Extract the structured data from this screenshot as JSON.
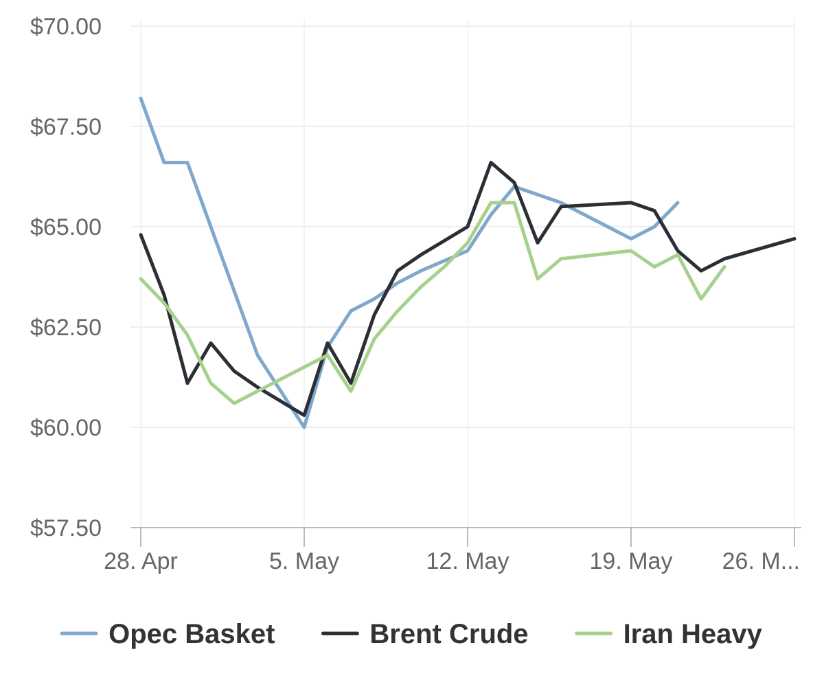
{
  "chart_data": {
    "type": "line",
    "title": "",
    "xlabel": "",
    "ylabel": "",
    "x_range": [
      "2019-04-28",
      "2019-05-26"
    ],
    "ylim": [
      57.5,
      70.0
    ],
    "y_ticks": [
      70.0,
      67.5,
      65.0,
      62.5,
      60.0,
      57.5
    ],
    "y_tick_labels": [
      "$70.00",
      "$67.50",
      "$65.00",
      "$62.50",
      "$60.00",
      "$57.50"
    ],
    "x_ticks": [
      "2019-04-28",
      "2019-05-05",
      "2019-05-12",
      "2019-05-19",
      "2019-05-26"
    ],
    "x_tick_labels": [
      "28. Apr",
      "5. May",
      "12. May",
      "19. May",
      "26. M..."
    ],
    "grid": true,
    "legend_position": "bottom",
    "series": [
      {
        "name": "Opec Basket",
        "color": "#7fa8cc",
        "points": [
          [
            "2019-04-28",
            68.2
          ],
          [
            "2019-04-29",
            66.6
          ],
          [
            "2019-04-30",
            66.6
          ],
          [
            "2019-05-03",
            61.8
          ],
          [
            "2019-05-05",
            60.0
          ],
          [
            "2019-05-06",
            62.0
          ],
          [
            "2019-05-07",
            62.9
          ],
          [
            "2019-05-08",
            63.2
          ],
          [
            "2019-05-09",
            63.6
          ],
          [
            "2019-05-10",
            63.9
          ],
          [
            "2019-05-12",
            64.4
          ],
          [
            "2019-05-13",
            65.3
          ],
          [
            "2019-05-14",
            66.0
          ],
          [
            "2019-05-16",
            65.6
          ],
          [
            "2019-05-17",
            65.3
          ],
          [
            "2019-05-19",
            64.7
          ],
          [
            "2019-05-20",
            65.0
          ],
          [
            "2019-05-21",
            65.6
          ]
        ]
      },
      {
        "name": "Brent Crude",
        "color": "#2b2f35",
        "points": [
          [
            "2019-04-28",
            64.8
          ],
          [
            "2019-04-29",
            63.3
          ],
          [
            "2019-04-30",
            61.1
          ],
          [
            "2019-05-01",
            62.1
          ],
          [
            "2019-05-02",
            61.4
          ],
          [
            "2019-05-03",
            61.0
          ],
          [
            "2019-05-05",
            60.3
          ],
          [
            "2019-05-06",
            62.1
          ],
          [
            "2019-05-07",
            61.1
          ],
          [
            "2019-05-08",
            62.8
          ],
          [
            "2019-05-09",
            63.9
          ],
          [
            "2019-05-10",
            64.3
          ],
          [
            "2019-05-12",
            65.0
          ],
          [
            "2019-05-13",
            66.6
          ],
          [
            "2019-05-14",
            66.1
          ],
          [
            "2019-05-15",
            64.6
          ],
          [
            "2019-05-16",
            65.5
          ],
          [
            "2019-05-19",
            65.6
          ],
          [
            "2019-05-20",
            65.4
          ],
          [
            "2019-05-21",
            64.4
          ],
          [
            "2019-05-22",
            63.9
          ],
          [
            "2019-05-23",
            64.2
          ],
          [
            "2019-05-26",
            64.7
          ]
        ]
      },
      {
        "name": "Iran Heavy",
        "color": "#a8d08d",
        "points": [
          [
            "2019-04-28",
            63.7
          ],
          [
            "2019-04-29",
            63.1
          ],
          [
            "2019-04-30",
            62.3
          ],
          [
            "2019-05-01",
            61.1
          ],
          [
            "2019-05-02",
            60.6
          ],
          [
            "2019-05-03",
            60.9
          ],
          [
            "2019-05-05",
            61.5
          ],
          [
            "2019-05-06",
            61.8
          ],
          [
            "2019-05-07",
            60.9
          ],
          [
            "2019-05-08",
            62.2
          ],
          [
            "2019-05-09",
            62.9
          ],
          [
            "2019-05-10",
            63.5
          ],
          [
            "2019-05-11",
            64.0
          ],
          [
            "2019-05-12",
            64.6
          ],
          [
            "2019-05-13",
            65.6
          ],
          [
            "2019-05-14",
            65.6
          ],
          [
            "2019-05-15",
            63.7
          ],
          [
            "2019-05-16",
            64.2
          ],
          [
            "2019-05-19",
            64.4
          ],
          [
            "2019-05-20",
            64.0
          ],
          [
            "2019-05-21",
            64.3
          ],
          [
            "2019-05-22",
            63.2
          ],
          [
            "2019-05-23",
            64.0
          ]
        ]
      }
    ]
  }
}
